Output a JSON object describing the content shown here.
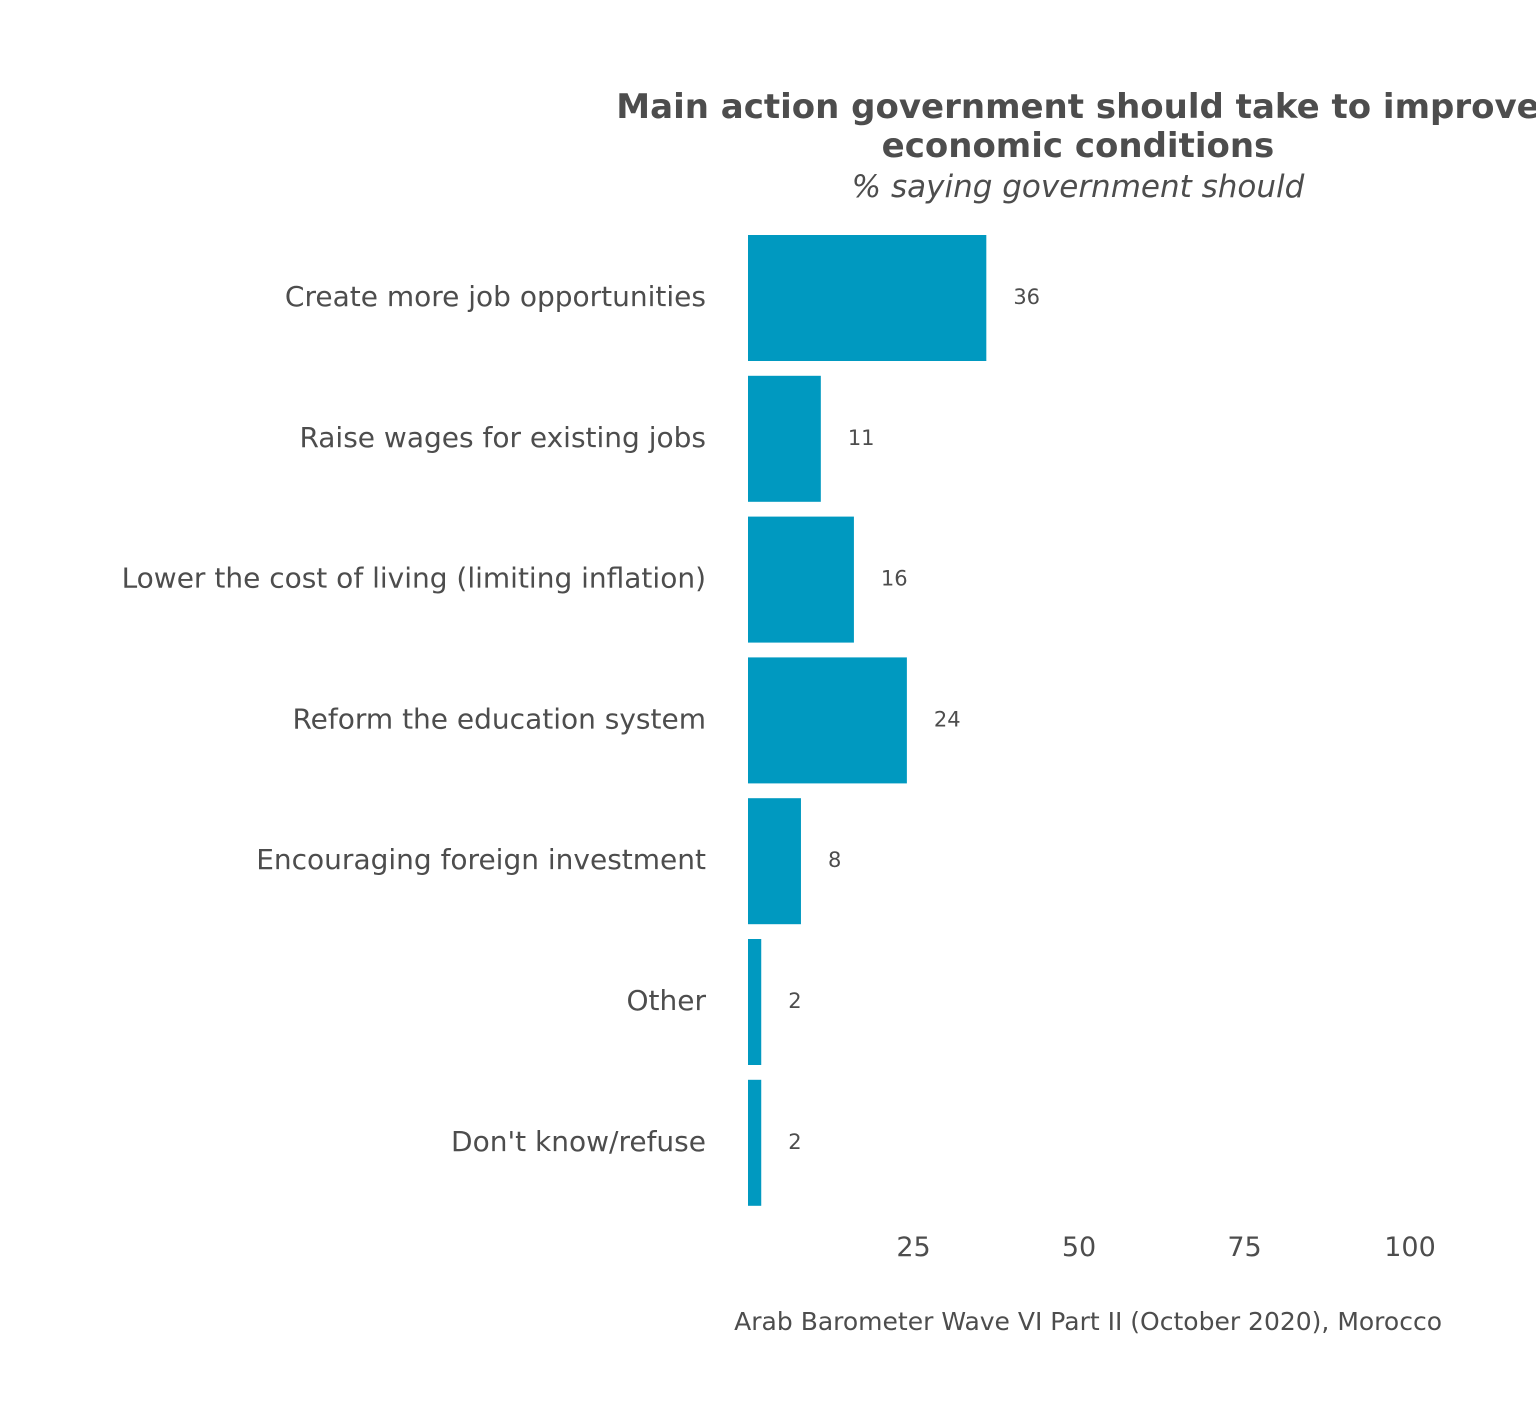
{
  "chart_data": {
    "type": "bar",
    "orientation": "horizontal",
    "title_lines": [
      "Main action government should take to improve",
      "economic conditions"
    ],
    "subtitle": "% saying government should",
    "categories": [
      "Create more job opportunities",
      "Raise wages for existing jobs",
      "Lower the cost of living (limiting inflation)",
      "Reform the education system",
      "Encouraging foreign investment",
      "Other",
      "Don't know/refuse"
    ],
    "values": [
      36,
      11,
      16,
      24,
      8,
      2,
      2
    ],
    "value_labels": [
      "36",
      "11",
      "16",
      "24",
      "8",
      "2",
      "2"
    ],
    "xlim": [
      0,
      100
    ],
    "x_ticks": [
      25,
      50,
      75,
      100
    ],
    "x_tick_labels": [
      "25",
      "50",
      "75",
      "100"
    ],
    "xlabel": "",
    "ylabel": "",
    "grid": false,
    "legend": "none",
    "bar_color": "#0099c0",
    "text_color": "#4d4d4d",
    "caption": "Arab Barometer Wave VI Part II (October 2020), Morocco"
  }
}
